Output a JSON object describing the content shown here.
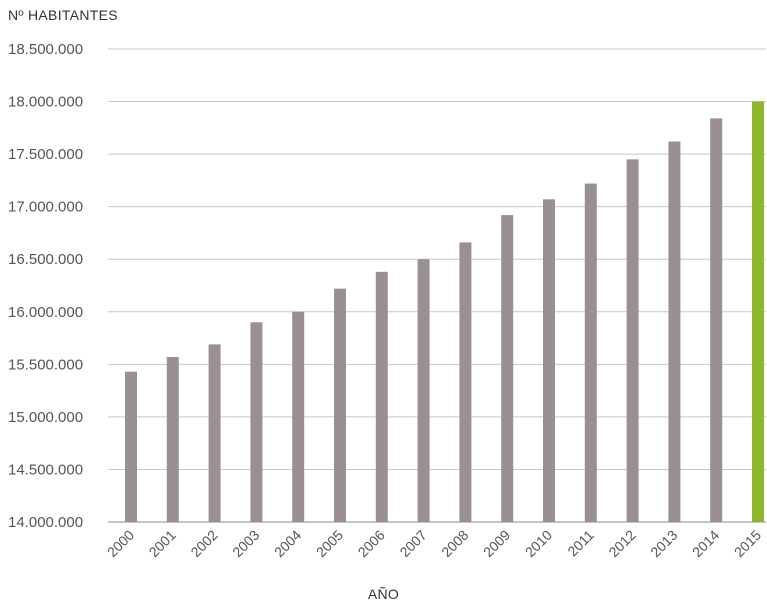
{
  "chart_data": {
    "type": "bar",
    "ylabel": "Nº HABITANTES",
    "xlabel": "AÑO",
    "categories": [
      "2000",
      "2001",
      "2002",
      "2003",
      "2004",
      "2005",
      "2006",
      "2007",
      "2008",
      "2009",
      "2010",
      "2011",
      "2012",
      "2013",
      "2014",
      "2015"
    ],
    "values": [
      15430000,
      15570000,
      15690000,
      15900000,
      16000000,
      16220000,
      16380000,
      16500000,
      16660000,
      16920000,
      17070000,
      17220000,
      17450000,
      17620000,
      17840000,
      18000000
    ],
    "ylim": [
      14000000,
      18500000
    ],
    "yticks": [
      14000000,
      14500000,
      15000000,
      15500000,
      16000000,
      16500000,
      17000000,
      17500000,
      18000000,
      18500000
    ],
    "ytick_labels": [
      "14.000.000",
      "14.500.000",
      "15.000.000",
      "15.500.000",
      "16.000.000",
      "16.500.000",
      "17.000.000",
      "17.500.000",
      "18.000.000",
      "18.500.000"
    ],
    "grid": true,
    "bar_color": "#9b8f96",
    "highlight_color": "#8db72d",
    "highlight_category": "2015"
  }
}
